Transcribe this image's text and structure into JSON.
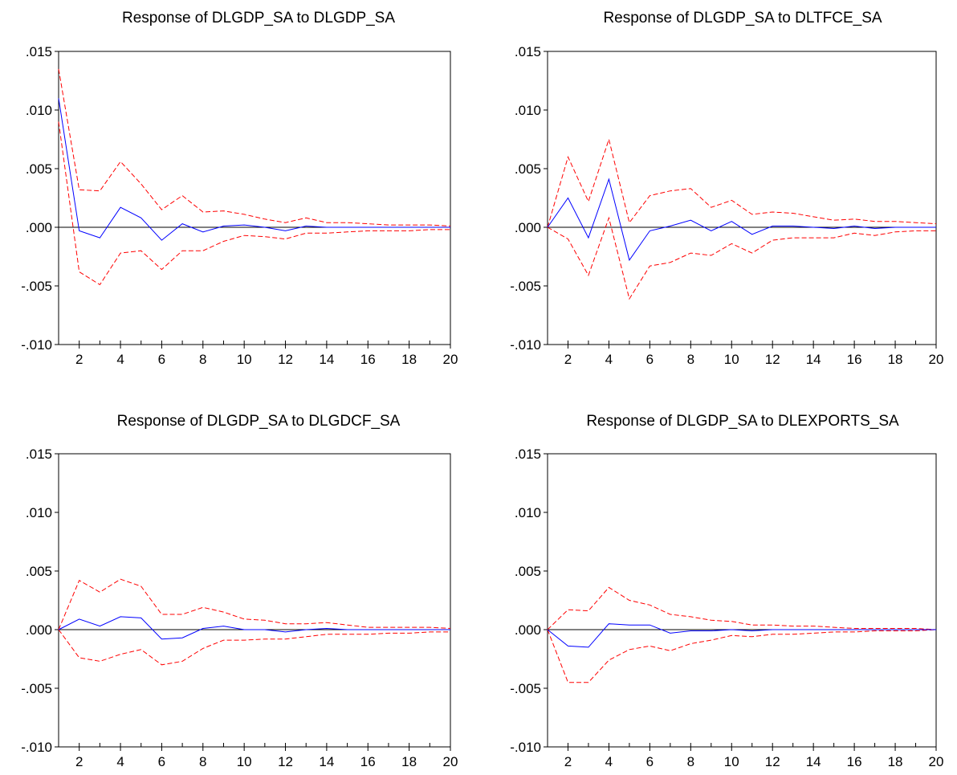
{
  "chart_data": [
    {
      "type": "line",
      "title": "Response of DLGDP_SA to DLGDP_SA",
      "x": [
        1,
        2,
        3,
        4,
        5,
        6,
        7,
        8,
        9,
        10,
        11,
        12,
        13,
        14,
        15,
        16,
        17,
        18,
        19,
        20
      ],
      "x_tick_labels": [
        "2",
        "4",
        "6",
        "8",
        "10",
        "12",
        "14",
        "16",
        "18",
        "20"
      ],
      "y_tick_labels": [
        ".015",
        ".010",
        ".005",
        ".000",
        "-.005",
        "-.010"
      ],
      "ylim": [
        -0.01,
        0.015
      ],
      "zero_line": true,
      "series": [
        {
          "role": "response",
          "color": "#0000ff",
          "style": "solid",
          "values": [
            0.011,
            -0.0003,
            -0.0009,
            0.0017,
            0.0008,
            -0.0011,
            0.0003,
            -0.0004,
            0.0001,
            0.0002,
            0.0,
            -0.0003,
            0.0001,
            0.0,
            0.0,
            0.0,
            0.0,
            0.0,
            0.0,
            0.0
          ]
        },
        {
          "role": "upper",
          "color": "#ff0000",
          "style": "dashed",
          "values": [
            0.0135,
            0.0032,
            0.0031,
            0.0056,
            0.0037,
            0.0015,
            0.0027,
            0.0013,
            0.0014,
            0.0011,
            0.0007,
            0.0004,
            0.0008,
            0.0004,
            0.0004,
            0.0003,
            0.0002,
            0.0002,
            0.0002,
            0.0001
          ]
        },
        {
          "role": "lower",
          "color": "#ff0000",
          "style": "dashed",
          "values": [
            0.009,
            -0.0038,
            -0.0049,
            -0.0022,
            -0.002,
            -0.0036,
            -0.002,
            -0.002,
            -0.0012,
            -0.0007,
            -0.0008,
            -0.001,
            -0.0005,
            -0.0005,
            -0.0004,
            -0.0003,
            -0.0003,
            -0.0003,
            -0.0002,
            -0.0002
          ]
        }
      ]
    },
    {
      "type": "line",
      "title": "Response of DLGDP_SA to DLTFCE_SA",
      "x": [
        1,
        2,
        3,
        4,
        5,
        6,
        7,
        8,
        9,
        10,
        11,
        12,
        13,
        14,
        15,
        16,
        17,
        18,
        19,
        20
      ],
      "x_tick_labels": [
        "2",
        "4",
        "6",
        "8",
        "10",
        "12",
        "14",
        "16",
        "18",
        "20"
      ],
      "y_tick_labels": [
        ".015",
        ".010",
        ".005",
        ".000",
        "-.005",
        "-.010"
      ],
      "ylim": [
        -0.01,
        0.015
      ],
      "zero_line": true,
      "series": [
        {
          "role": "response",
          "color": "#0000ff",
          "style": "solid",
          "values": [
            0.0,
            0.0025,
            -0.0009,
            0.0041,
            -0.0028,
            -0.0003,
            0.0001,
            0.0006,
            -0.0003,
            0.0005,
            -0.0006,
            0.0001,
            0.0001,
            0.0,
            -0.0001,
            0.0001,
            -0.0001,
            0.0,
            0.0,
            0.0
          ]
        },
        {
          "role": "upper",
          "color": "#ff0000",
          "style": "dashed",
          "values": [
            0.0,
            0.006,
            0.0022,
            0.0075,
            0.0004,
            0.0027,
            0.0031,
            0.0033,
            0.0017,
            0.0023,
            0.0011,
            0.0013,
            0.0012,
            0.0009,
            0.0006,
            0.0007,
            0.0005,
            0.0005,
            0.0004,
            0.0003
          ]
        },
        {
          "role": "lower",
          "color": "#ff0000",
          "style": "dashed",
          "values": [
            0.0,
            -0.001,
            -0.0041,
            0.0008,
            -0.0061,
            -0.0033,
            -0.003,
            -0.0022,
            -0.0024,
            -0.0014,
            -0.0022,
            -0.0011,
            -0.0009,
            -0.0009,
            -0.0009,
            -0.0005,
            -0.0007,
            -0.0004,
            -0.0003,
            -0.0003
          ]
        }
      ]
    },
    {
      "type": "line",
      "title": "Response of DLGDP_SA to DLGDCF_SA",
      "x": [
        1,
        2,
        3,
        4,
        5,
        6,
        7,
        8,
        9,
        10,
        11,
        12,
        13,
        14,
        15,
        16,
        17,
        18,
        19,
        20
      ],
      "x_tick_labels": [
        "2",
        "4",
        "6",
        "8",
        "10",
        "12",
        "14",
        "16",
        "18",
        "20"
      ],
      "y_tick_labels": [
        ".015",
        ".010",
        ".005",
        ".000",
        "-.005",
        "-.010"
      ],
      "ylim": [
        -0.01,
        0.015
      ],
      "zero_line": true,
      "series": [
        {
          "role": "response",
          "color": "#0000ff",
          "style": "solid",
          "values": [
            0.0,
            0.0009,
            0.0003,
            0.0011,
            0.001,
            -0.0008,
            -0.0007,
            0.0001,
            0.0003,
            0.0,
            0.0,
            -0.0002,
            0.0,
            0.0001,
            0.0,
            0.0,
            0.0,
            0.0,
            0.0,
            0.0
          ]
        },
        {
          "role": "upper",
          "color": "#ff0000",
          "style": "dashed",
          "values": [
            0.0,
            0.0042,
            0.0032,
            0.0043,
            0.0037,
            0.0013,
            0.0013,
            0.0019,
            0.0015,
            0.0009,
            0.0008,
            0.0005,
            0.0005,
            0.0006,
            0.0004,
            0.0002,
            0.0002,
            0.0002,
            0.0002,
            0.0001
          ]
        },
        {
          "role": "lower",
          "color": "#ff0000",
          "style": "dashed",
          "values": [
            0.0,
            -0.0024,
            -0.0027,
            -0.0021,
            -0.0017,
            -0.003,
            -0.0027,
            -0.0016,
            -0.0009,
            -0.0009,
            -0.0008,
            -0.0008,
            -0.0006,
            -0.0004,
            -0.0004,
            -0.0004,
            -0.0003,
            -0.0003,
            -0.0002,
            -0.0002
          ]
        }
      ]
    },
    {
      "type": "line",
      "title": "Response of DLGDP_SA to DLEXPORTS_SA",
      "x": [
        1,
        2,
        3,
        4,
        5,
        6,
        7,
        8,
        9,
        10,
        11,
        12,
        13,
        14,
        15,
        16,
        17,
        18,
        19,
        20
      ],
      "x_tick_labels": [
        "2",
        "4",
        "6",
        "8",
        "10",
        "12",
        "14",
        "16",
        "18",
        "20"
      ],
      "y_tick_labels": [
        ".015",
        ".010",
        ".005",
        ".000",
        "-.005",
        "-.010"
      ],
      "ylim": [
        -0.01,
        0.015
      ],
      "zero_line": true,
      "series": [
        {
          "role": "response",
          "color": "#0000ff",
          "style": "solid",
          "values": [
            0.0,
            -0.0014,
            -0.0015,
            0.0005,
            0.0004,
            0.0004,
            -0.0003,
            -0.0001,
            -0.0001,
            0.0,
            -0.0001,
            0.0,
            0.0,
            0.0,
            0.0,
            0.0,
            0.0,
            0.0,
            0.0,
            0.0
          ]
        },
        {
          "role": "upper",
          "color": "#ff0000",
          "style": "dashed",
          "values": [
            0.0,
            0.0017,
            0.0016,
            0.0036,
            0.0025,
            0.0021,
            0.0013,
            0.0011,
            0.0008,
            0.0007,
            0.0004,
            0.0004,
            0.0003,
            0.0003,
            0.0002,
            0.0001,
            0.0001,
            0.0001,
            0.0001,
            0.0
          ]
        },
        {
          "role": "lower",
          "color": "#ff0000",
          "style": "dashed",
          "values": [
            0.0,
            -0.0045,
            -0.0045,
            -0.0026,
            -0.0017,
            -0.0014,
            -0.0018,
            -0.0012,
            -0.0009,
            -0.0005,
            -0.0006,
            -0.0004,
            -0.0004,
            -0.0003,
            -0.0002,
            -0.0002,
            -0.0001,
            -0.0001,
            -0.0001,
            0.0
          ]
        }
      ]
    }
  ]
}
